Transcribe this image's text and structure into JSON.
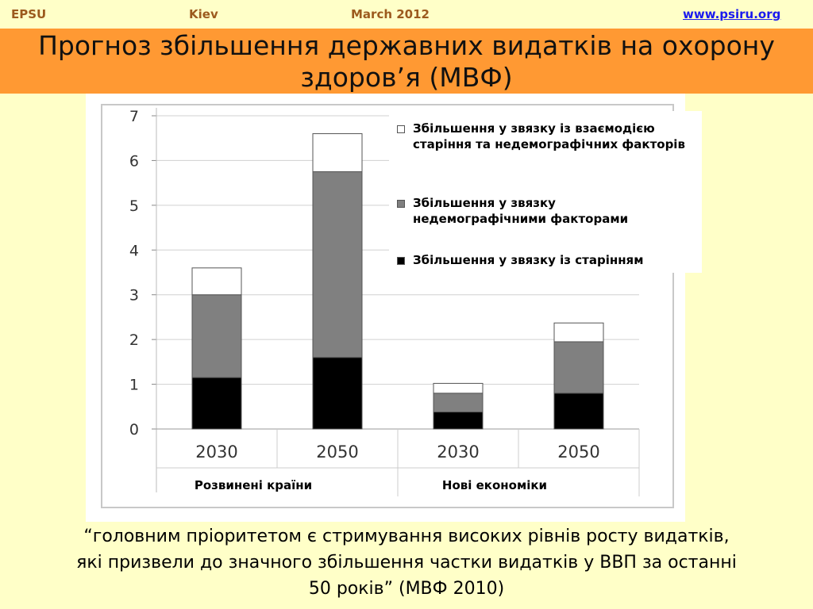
{
  "header": {
    "org": "EPSU",
    "city": "Kiev",
    "date": "March 2012",
    "url": "www.psiru.org"
  },
  "slide": {
    "title": "Прогноз збільшення державних видатків на охорону здоров’я (МВФ)",
    "quote_lines": [
      "“головним пріоритетом є стримування високих рівнів росту видатків,",
      "які призвели до значного збільшення частки видатків у ВВП за останні",
      "50 років” (МВФ 2010)"
    ]
  },
  "colors": {
    "background": "#ffffc8",
    "title_band": "#ff9933",
    "header_text": "#9c5a1e",
    "link": "#1a1aee",
    "aging": "#000000",
    "nondemographic": "#808080",
    "interaction": "#ffffff"
  },
  "chart_data": {
    "type": "bar",
    "stacked": true,
    "categories": [
      "2030",
      "2050",
      "2030",
      "2050"
    ],
    "groups": [
      {
        "label": "Розвинені країни",
        "categories": [
          "2030",
          "2050"
        ]
      },
      {
        "label": "Нові економіки",
        "categories": [
          "2030",
          "2050"
        ]
      }
    ],
    "series": [
      {
        "name": "Збільшення у звязку із старінням",
        "color": "#000000",
        "values": [
          1.15,
          1.6,
          0.38,
          0.8
        ]
      },
      {
        "name": "Збільшення у звязку недемографічними факторами",
        "color": "#808080",
        "values": [
          1.85,
          4.15,
          0.42,
          1.15
        ]
      },
      {
        "name": "Збільшення у звязку із взаємодією старіння та недемографічних факторів",
        "color": "#ffffff",
        "values": [
          0.6,
          0.85,
          0.22,
          0.42
        ]
      }
    ],
    "legend_order": [
      2,
      1,
      0
    ],
    "yticks": [
      "0",
      "1",
      "2",
      "3",
      "4",
      "5",
      "6",
      "7"
    ],
    "ylim": [
      0,
      7
    ],
    "grid": true,
    "legend": "top-right"
  }
}
